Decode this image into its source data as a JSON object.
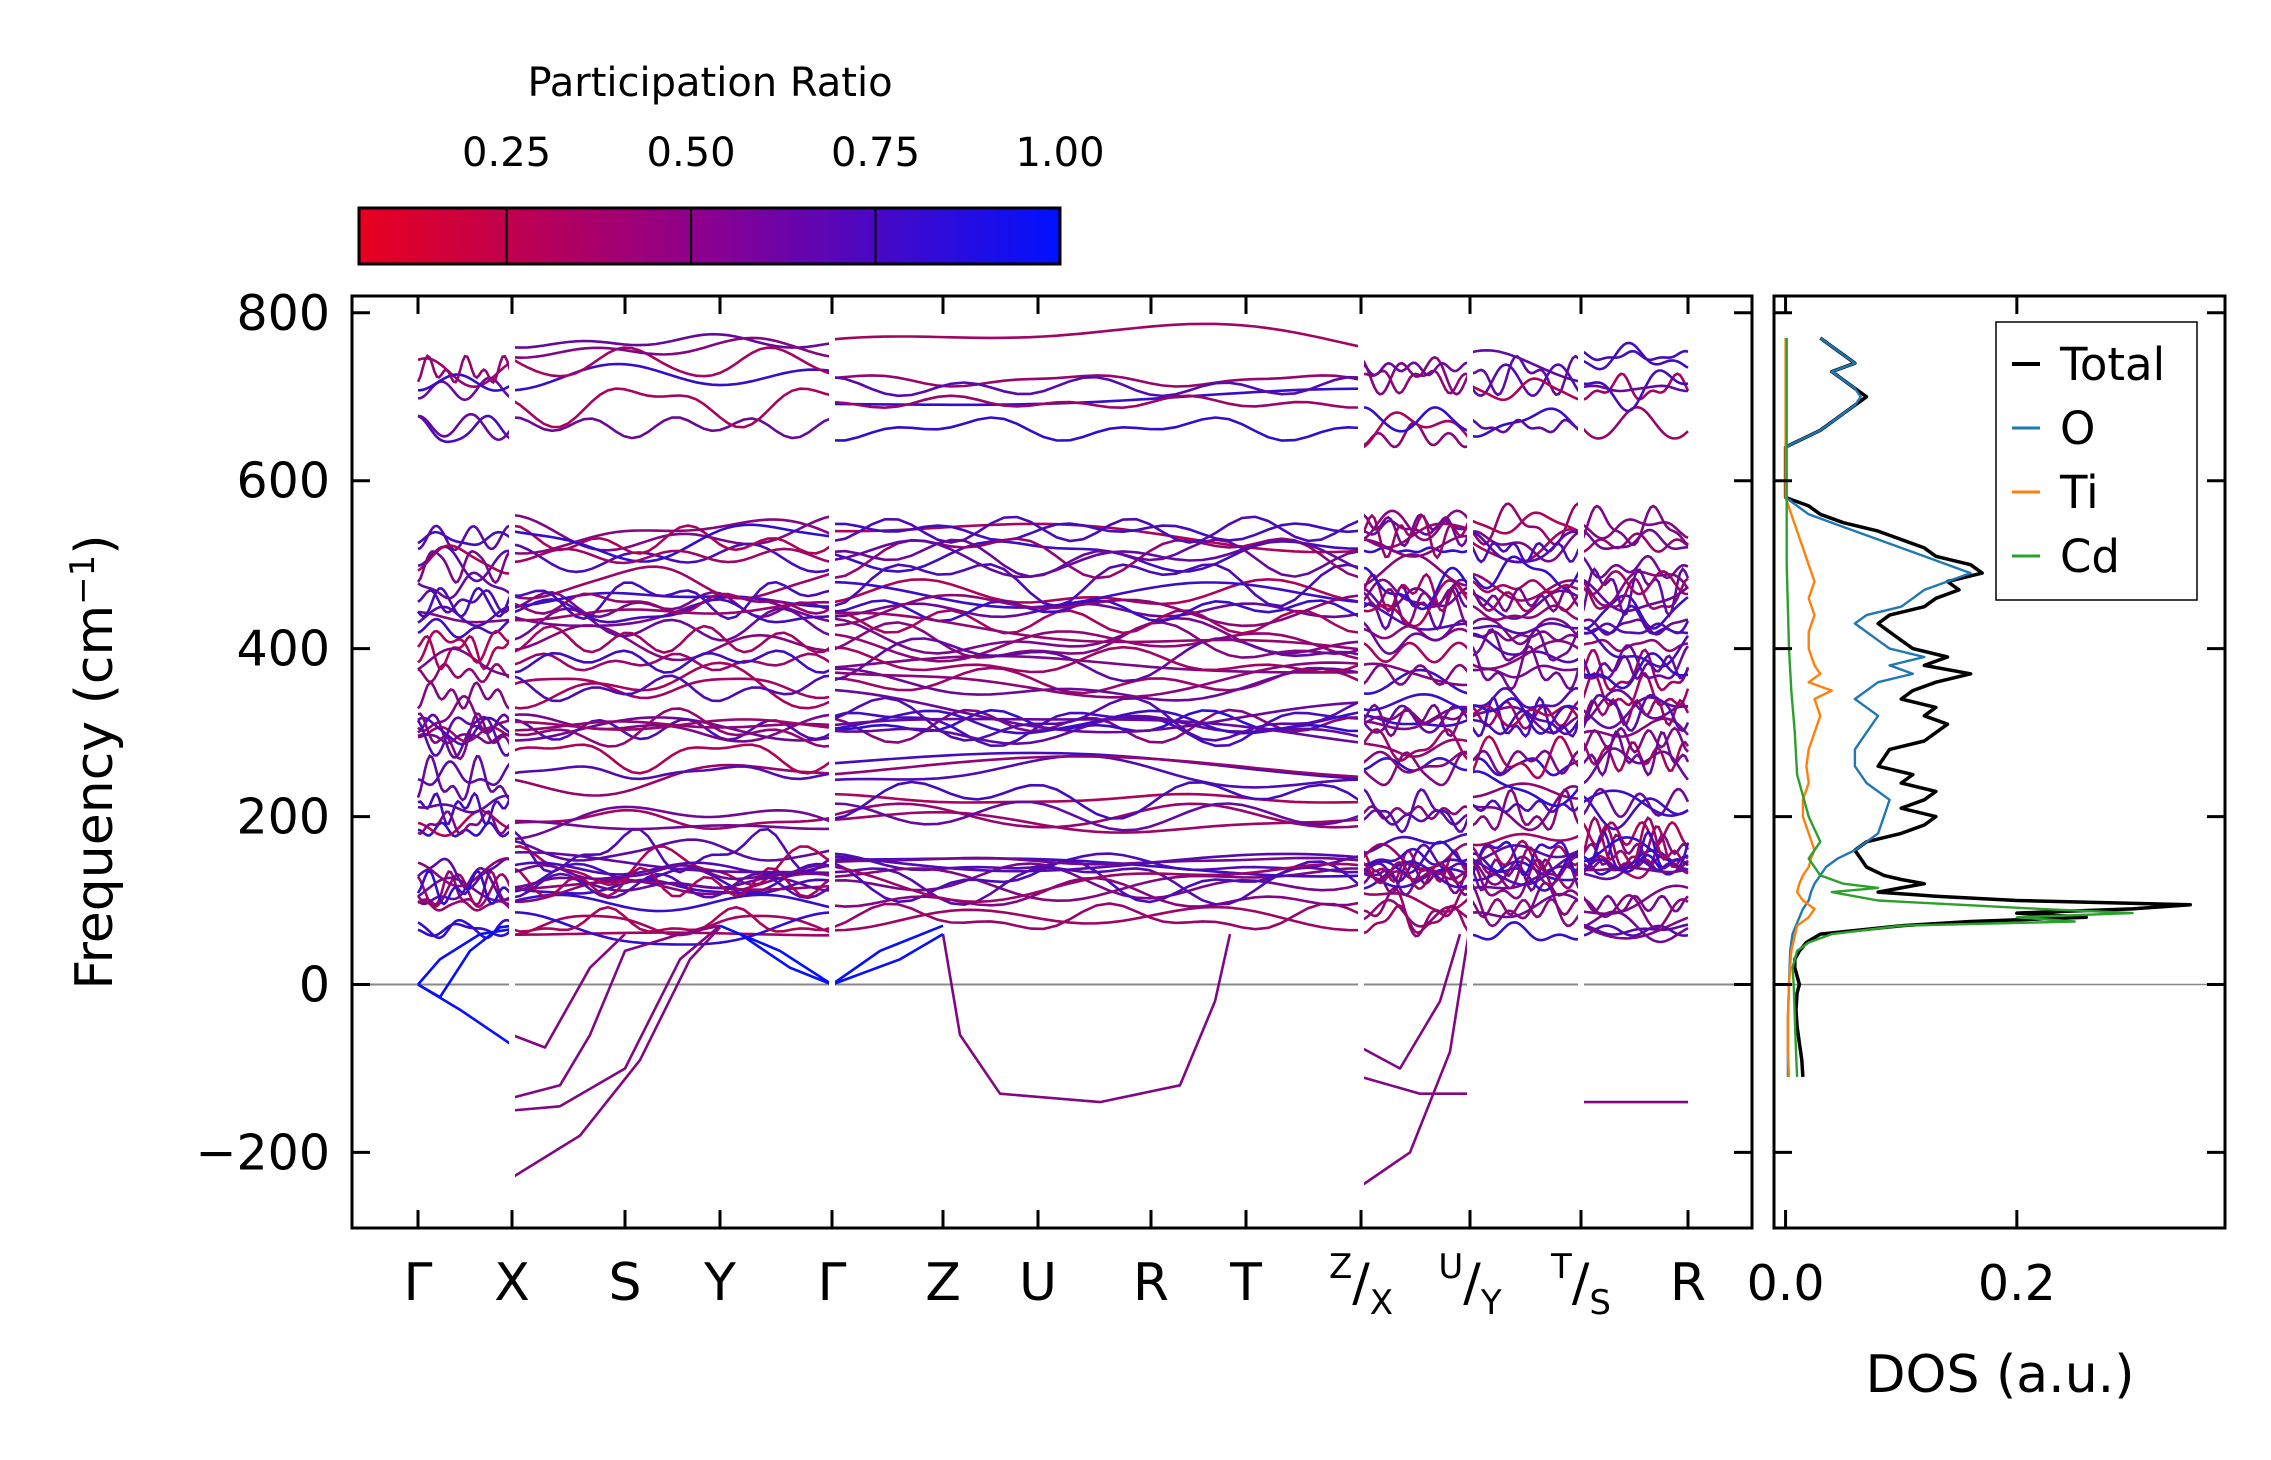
{
  "chart_data": [
    {
      "type": "line",
      "name": "phonon-band-structure",
      "ylabel": "Frequency (cm",
      "ylabel_superscript": "−1",
      "ylabel_suffix": ")",
      "ylim": [
        -290,
        820
      ],
      "yticks": [
        {
          "value": -200,
          "label": "−200"
        },
        {
          "value": 0,
          "label": "0"
        },
        {
          "value": 200,
          "label": "200"
        },
        {
          "value": 400,
          "label": "400"
        },
        {
          "value": 600,
          "label": "600"
        },
        {
          "value": 800,
          "label": "800"
        }
      ],
      "kpath": [
        {
          "label": "Γ"
        },
        {
          "label": "X"
        },
        {
          "label": "S"
        },
        {
          "label": "Y"
        },
        {
          "label": "Γ"
        },
        {
          "label": "Z"
        },
        {
          "label": "U"
        },
        {
          "label": "R"
        },
        {
          "label": "T"
        },
        {
          "label": "/",
          "sup": "Z",
          "sub": "X"
        },
        {
          "label": "/",
          "sup": "U",
          "sub": "Y"
        },
        {
          "label": "/",
          "sup": "T",
          "sub": "S"
        },
        {
          "label": "R"
        }
      ],
      "segments": [
        [
          0,
          1
        ],
        [
          1,
          2,
          3,
          4
        ],
        [
          4,
          5,
          6,
          7,
          8,
          9
        ],
        [
          9,
          10
        ],
        [
          10,
          11
        ],
        [
          11,
          12
        ]
      ],
      "colorbar": {
        "title": "Participation Ratio",
        "range": [
          0.05,
          1.0
        ],
        "ticks": [
          "0.25",
          "0.50",
          "0.75",
          "1.00"
        ],
        "tick_values": [
          0.25,
          0.5,
          0.75,
          1.0
        ],
        "color_low": "#e8001e",
        "color_high": "#0011ff"
      },
      "features": {
        "acoustic_gamma": true,
        "imaginary_modes_cm1": [
          -75,
          -135,
          -150,
          -230
        ],
        "optical_band_high_cm1": [
          650,
          770
        ],
        "optical_band_mid_cm1": [
          60,
          560
        ]
      }
    },
    {
      "type": "line",
      "name": "phonon-dos",
      "xlabel": "DOS (a.u.)",
      "xlim": [
        -0.01,
        0.38
      ],
      "xticks": [
        {
          "value": 0.0,
          "label": "0.0"
        },
        {
          "value": 0.2,
          "label": "0.2"
        }
      ],
      "ylim": [
        -290,
        820
      ],
      "series": [
        {
          "name": "Total",
          "color": "#000000",
          "points": [
            [
              -110,
              0.015
            ],
            [
              -90,
              0.014
            ],
            [
              -70,
              0.012
            ],
            [
              -50,
              0.01
            ],
            [
              -30,
              0.009
            ],
            [
              -10,
              0.01
            ],
            [
              0,
              0.012
            ],
            [
              10,
              0.01
            ],
            [
              20,
              0.008
            ],
            [
              30,
              0.008
            ],
            [
              40,
              0.012
            ],
            [
              50,
              0.018
            ],
            [
              60,
              0.03
            ],
            [
              70,
              0.1
            ],
            [
              75,
              0.16
            ],
            [
              80,
              0.26
            ],
            [
              85,
              0.2
            ],
            [
              90,
              0.3
            ],
            [
              95,
              0.35
            ],
            [
              100,
              0.2
            ],
            [
              105,
              0.13
            ],
            [
              110,
              0.08
            ],
            [
              115,
              0.1
            ],
            [
              120,
              0.12
            ],
            [
              125,
              0.1
            ],
            [
              130,
              0.085
            ],
            [
              140,
              0.07
            ],
            [
              150,
              0.065
            ],
            [
              160,
              0.06
            ],
            [
              170,
              0.07
            ],
            [
              180,
              0.1
            ],
            [
              190,
              0.12
            ],
            [
              200,
              0.13
            ],
            [
              210,
              0.1
            ],
            [
              220,
              0.12
            ],
            [
              230,
              0.13
            ],
            [
              240,
              0.1
            ],
            [
              250,
              0.11
            ],
            [
              260,
              0.08
            ],
            [
              270,
              0.085
            ],
            [
              280,
              0.09
            ],
            [
              290,
              0.12
            ],
            [
              300,
              0.13
            ],
            [
              310,
              0.14
            ],
            [
              320,
              0.12
            ],
            [
              330,
              0.13
            ],
            [
              340,
              0.1
            ],
            [
              350,
              0.11
            ],
            [
              360,
              0.13
            ],
            [
              370,
              0.16
            ],
            [
              380,
              0.12
            ],
            [
              390,
              0.14
            ],
            [
              400,
              0.11
            ],
            [
              410,
              0.1
            ],
            [
              420,
              0.09
            ],
            [
              430,
              0.08
            ],
            [
              440,
              0.09
            ],
            [
              450,
              0.12
            ],
            [
              460,
              0.13
            ],
            [
              470,
              0.15
            ],
            [
              480,
              0.14
            ],
            [
              490,
              0.17
            ],
            [
              500,
              0.16
            ],
            [
              510,
              0.13
            ],
            [
              520,
              0.12
            ],
            [
              530,
              0.1
            ],
            [
              540,
              0.08
            ],
            [
              550,
              0.05
            ],
            [
              560,
              0.03
            ],
            [
              570,
              0.02
            ],
            [
              580,
              0.0
            ],
            [
              600,
              0.0
            ],
            [
              640,
              0.0
            ],
            [
              660,
              0.03
            ],
            [
              680,
              0.05
            ],
            [
              690,
              0.06
            ],
            [
              700,
              0.07
            ],
            [
              710,
              0.06
            ],
            [
              720,
              0.05
            ],
            [
              730,
              0.04
            ],
            [
              740,
              0.06
            ],
            [
              750,
              0.05
            ],
            [
              760,
              0.04
            ],
            [
              770,
              0.03
            ]
          ]
        },
        {
          "name": "O",
          "color": "#1f77b4",
          "points": [
            [
              -110,
              0.002
            ],
            [
              -80,
              0.002
            ],
            [
              -40,
              0.002
            ],
            [
              0,
              0.003
            ],
            [
              40,
              0.004
            ],
            [
              60,
              0.006
            ],
            [
              80,
              0.012
            ],
            [
              90,
              0.015
            ],
            [
              100,
              0.02
            ],
            [
              110,
              0.022
            ],
            [
              120,
              0.025
            ],
            [
              130,
              0.03
            ],
            [
              140,
              0.035
            ],
            [
              150,
              0.045
            ],
            [
              160,
              0.06
            ],
            [
              170,
              0.07
            ],
            [
              180,
              0.08
            ],
            [
              200,
              0.085
            ],
            [
              220,
              0.09
            ],
            [
              240,
              0.07
            ],
            [
              260,
              0.06
            ],
            [
              280,
              0.06
            ],
            [
              300,
              0.07
            ],
            [
              320,
              0.08
            ],
            [
              340,
              0.06
            ],
            [
              350,
              0.07
            ],
            [
              360,
              0.08
            ],
            [
              370,
              0.11
            ],
            [
              380,
              0.09
            ],
            [
              390,
              0.12
            ],
            [
              400,
              0.09
            ],
            [
              410,
              0.08
            ],
            [
              420,
              0.07
            ],
            [
              430,
              0.06
            ],
            [
              440,
              0.07
            ],
            [
              450,
              0.1
            ],
            [
              460,
              0.11
            ],
            [
              470,
              0.12
            ],
            [
              480,
              0.14
            ],
            [
              490,
              0.16
            ],
            [
              500,
              0.14
            ],
            [
              510,
              0.12
            ],
            [
              520,
              0.1
            ],
            [
              530,
              0.08
            ],
            [
              540,
              0.06
            ],
            [
              550,
              0.04
            ],
            [
              560,
              0.02
            ],
            [
              570,
              0.01
            ],
            [
              580,
              0.0
            ],
            [
              640,
              0.0
            ],
            [
              660,
              0.03
            ],
            [
              680,
              0.05
            ],
            [
              690,
              0.06
            ],
            [
              700,
              0.065
            ],
            [
              710,
              0.06
            ],
            [
              720,
              0.05
            ],
            [
              730,
              0.04
            ],
            [
              740,
              0.06
            ],
            [
              750,
              0.05
            ],
            [
              760,
              0.04
            ],
            [
              770,
              0.03
            ]
          ]
        },
        {
          "name": "Ti",
          "color": "#ff7f0e",
          "points": [
            [
              -110,
              0.003
            ],
            [
              -80,
              0.002
            ],
            [
              -40,
              0.002
            ],
            [
              0,
              0.003
            ],
            [
              40,
              0.005
            ],
            [
              70,
              0.01
            ],
            [
              80,
              0.02
            ],
            [
              90,
              0.025
            ],
            [
              100,
              0.015
            ],
            [
              110,
              0.01
            ],
            [
              120,
              0.012
            ],
            [
              130,
              0.015
            ],
            [
              140,
              0.02
            ],
            [
              150,
              0.022
            ],
            [
              160,
              0.025
            ],
            [
              180,
              0.02
            ],
            [
              200,
              0.015
            ],
            [
              220,
              0.015
            ],
            [
              240,
              0.02
            ],
            [
              260,
              0.018
            ],
            [
              280,
              0.02
            ],
            [
              300,
              0.025
            ],
            [
              320,
              0.03
            ],
            [
              340,
              0.025
            ],
            [
              350,
              0.04
            ],
            [
              360,
              0.02
            ],
            [
              370,
              0.03
            ],
            [
              380,
              0.025
            ],
            [
              400,
              0.02
            ],
            [
              420,
              0.02
            ],
            [
              440,
              0.025
            ],
            [
              460,
              0.02
            ],
            [
              480,
              0.025
            ],
            [
              500,
              0.02
            ],
            [
              520,
              0.015
            ],
            [
              540,
              0.01
            ],
            [
              560,
              0.005
            ],
            [
              580,
              0.0
            ],
            [
              770,
              0.0
            ]
          ]
        },
        {
          "name": "Cd",
          "color": "#2ca02c",
          "points": [
            [
              -110,
              0.01
            ],
            [
              -80,
              0.009
            ],
            [
              -40,
              0.008
            ],
            [
              0,
              0.007
            ],
            [
              20,
              0.006
            ],
            [
              40,
              0.01
            ],
            [
              50,
              0.02
            ],
            [
              60,
              0.04
            ],
            [
              70,
              0.1
            ],
            [
              75,
              0.25
            ],
            [
              80,
              0.2
            ],
            [
              85,
              0.3
            ],
            [
              90,
              0.22
            ],
            [
              95,
              0.15
            ],
            [
              100,
              0.08
            ],
            [
              105,
              0.06
            ],
            [
              110,
              0.04
            ],
            [
              115,
              0.08
            ],
            [
              120,
              0.05
            ],
            [
              130,
              0.03
            ],
            [
              150,
              0.02
            ],
            [
              170,
              0.03
            ],
            [
              200,
              0.02
            ],
            [
              250,
              0.01
            ],
            [
              300,
              0.008
            ],
            [
              350,
              0.005
            ],
            [
              400,
              0.003
            ],
            [
              500,
              0.001
            ],
            [
              600,
              0.001
            ],
            [
              770,
              0.001
            ]
          ]
        }
      ],
      "legend": {
        "entries": [
          "Total",
          "O",
          "Ti",
          "Cd"
        ],
        "placement": "top-right"
      }
    }
  ]
}
